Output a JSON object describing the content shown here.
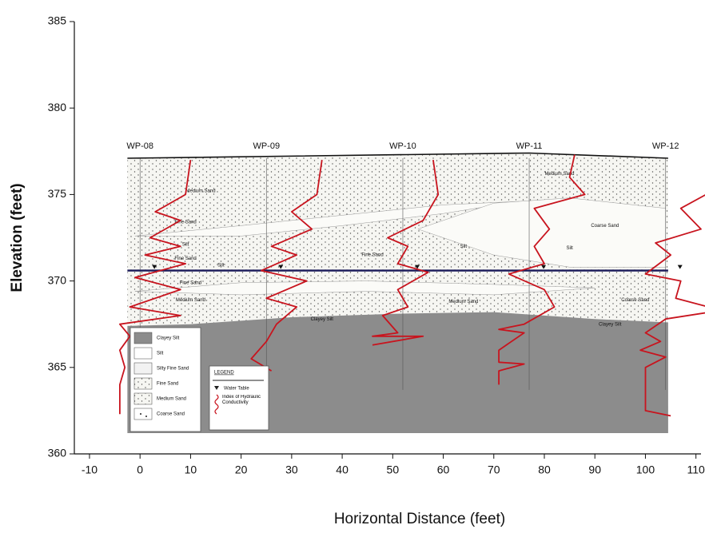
{
  "chart_data": {
    "type": "cross_section",
    "xlabel": "Horizontal Distance (feet)",
    "ylabel": "Elevation (feet)",
    "xlim": [
      -13,
      111
    ],
    "ylim": [
      360,
      385
    ],
    "xticks": [
      -10,
      0,
      10,
      20,
      30,
      40,
      50,
      60,
      70,
      80,
      90,
      100,
      110
    ],
    "yticks": [
      360,
      365,
      370,
      375,
      380,
      385
    ],
    "wells": [
      {
        "name": "WP-08",
        "x": 0
      },
      {
        "name": "WP-09",
        "x": 25
      },
      {
        "name": "WP-10",
        "x": 52
      },
      {
        "name": "WP-11",
        "x": 77
      },
      {
        "name": "WP-12",
        "x": 104
      }
    ],
    "section_x": [
      -2.5,
      104.5
    ],
    "clay_bottom": 361.2,
    "ground_surface": {
      "x": [
        -2.5,
        77,
        104.5
      ],
      "y": [
        377.1,
        377.4,
        377.1
      ],
      "color": "#111111"
    },
    "water_table": {
      "x": [
        -2.5,
        104.5
      ],
      "y": [
        370.6,
        370.6
      ],
      "color": "#1a1a5a"
    },
    "clay_top": {
      "x": [
        -2.5,
        10,
        30,
        50,
        70,
        90,
        104.5
      ],
      "y": [
        367.4,
        367.5,
        367.9,
        368.1,
        368.2,
        367.8,
        367.6
      ]
    },
    "log_color": "#c8141e",
    "logs": [
      {
        "x": [
          10,
          9,
          3,
          8,
          2,
          8,
          1,
          9,
          -1,
          8,
          -2,
          8,
          -4,
          -2,
          -4,
          -3,
          -4,
          -4
        ],
        "y": [
          377,
          375,
          374,
          373.5,
          372.5,
          372,
          371.5,
          371,
          370.2,
          369.5,
          368.5,
          368,
          367.5,
          366.8,
          366,
          365,
          364,
          362.3
        ]
      },
      {
        "x": [
          36,
          35,
          30,
          34,
          26,
          31,
          24,
          33,
          25,
          31,
          27,
          25,
          22,
          26
        ],
        "y": [
          377,
          375,
          374,
          373,
          372,
          371.5,
          370.6,
          370,
          369,
          368.5,
          367.5,
          366.5,
          365.5,
          364.8
        ]
      },
      {
        "x": [
          58,
          59,
          56,
          49,
          53,
          51,
          57,
          51,
          53,
          48,
          51,
          46,
          56,
          46
        ],
        "y": [
          377,
          375,
          373.5,
          372.5,
          372,
          371,
          370.5,
          369.5,
          368.5,
          368,
          367,
          366.8,
          366.8,
          366.3
        ]
      },
      {
        "x": [
          86,
          85,
          88,
          78,
          81,
          78,
          80,
          73,
          80,
          82,
          76,
          71,
          76,
          71,
          71,
          76,
          71,
          71
        ],
        "y": [
          377.3,
          376,
          375,
          374.2,
          373,
          372,
          371,
          370.4,
          369.5,
          368.5,
          367.5,
          367.2,
          367,
          366,
          365.3,
          365.2,
          364.8,
          364
        ]
      },
      {
        "x": [
          116,
          112,
          107,
          111,
          102,
          105,
          100,
          107,
          106,
          115,
          104,
          100,
          103,
          99,
          104,
          100,
          100,
          105
        ],
        "y": [
          377,
          375,
          374.2,
          373,
          372.2,
          371.5,
          370.4,
          370,
          369,
          368.3,
          367.8,
          367,
          366.5,
          366,
          365.6,
          365,
          362.5,
          362.2
        ]
      }
    ],
    "layer_labels": [
      "Medium Sand",
      "Fine Sand",
      "Silt",
      "Fine Sand",
      "Silt",
      "Fine Sand",
      "Medium Sand",
      "Clayey Silt",
      "Fine Sand",
      "Silt",
      "Medium Sand",
      "Coarse Sand",
      "Silt",
      "Coarse Sand",
      "Clayey Silt",
      "Medium Sand"
    ],
    "legend_units": [
      "Clayey Silt",
      "Silt",
      "Silty Fine Sand",
      "Fine Sand",
      "Medium Sand",
      "Coarse Sand"
    ],
    "legend_title": "LEGEND",
    "legend_symbols": [
      "Water Table",
      "Index of Hydraulic Conductivity"
    ]
  }
}
